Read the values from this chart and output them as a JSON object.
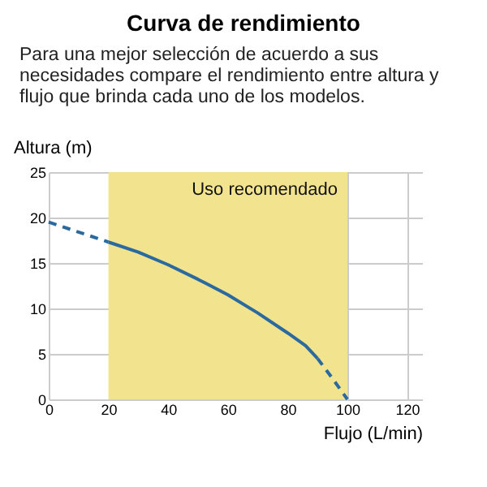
{
  "chart_data": {
    "type": "line",
    "title": "Curva de rendimiento",
    "subtitle": "Para una mejor selección de acuerdo a sus necesidades compare el rendimiento entre altura y flujo que brinda cada uno de los modelos.",
    "xlabel": "Flujo (L/min)",
    "ylabel": "Altura (m)",
    "series": [
      {
        "color": "#2b6a9e",
        "line_style": "dashed",
        "x": [
          0,
          20
        ],
        "values": [
          19.5,
          17.3
        ]
      },
      {
        "color": "#2b6a9e",
        "line_style": "solid",
        "x": [
          20,
          30,
          40,
          50,
          60,
          70,
          80,
          86,
          90
        ],
        "values": [
          17.3,
          16.2,
          14.8,
          13.2,
          11.5,
          9.5,
          7.3,
          5.9,
          4.5
        ]
      },
      {
        "color": "#2b6a9e",
        "line_style": "dashed",
        "x": [
          90,
          95,
          100
        ],
        "values": [
          4.5,
          2.3,
          0
        ]
      }
    ],
    "bands": [
      {
        "axis": "x",
        "from": 20,
        "to": 100,
        "label": "Uso recomendado",
        "color": "#f2e38f"
      }
    ],
    "xlim": [
      0,
      125
    ],
    "xticks": [
      0,
      20,
      40,
      60,
      80,
      100,
      120
    ],
    "ylim": [
      0,
      25
    ],
    "yticks": [
      0,
      5,
      10,
      15,
      20,
      25
    ],
    "grid": true,
    "marker": "none"
  }
}
